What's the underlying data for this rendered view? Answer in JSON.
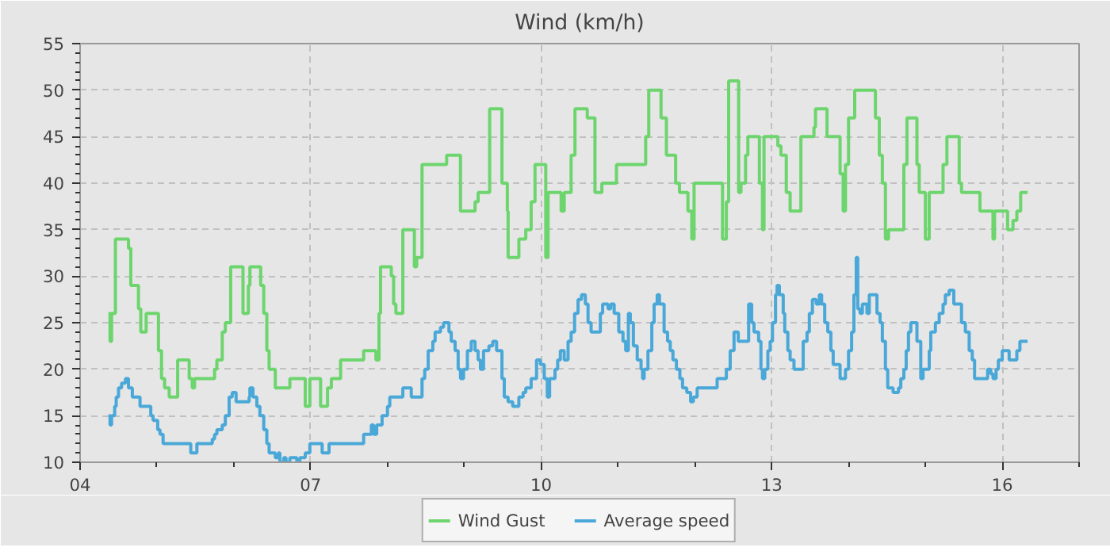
{
  "chart_data": {
    "type": "step",
    "title": "Wind (km/h)",
    "xlim": [
      4,
      17
    ],
    "xticks": [
      {
        "value": 4,
        "label": "04"
      },
      {
        "value": 7,
        "label": "07"
      },
      {
        "value": 10,
        "label": "10"
      },
      {
        "value": 13,
        "label": "13"
      },
      {
        "value": 16,
        "label": "16"
      }
    ],
    "ylim": [
      10,
      55
    ],
    "yticks": [
      10,
      15,
      20,
      25,
      30,
      35,
      40,
      45,
      50,
      55
    ],
    "grid": true,
    "legend": "bottom",
    "series": [
      {
        "name": "Wind Gust",
        "color": "#6dd56d",
        "x": [
          4.37,
          4.39,
          4.41,
          4.46,
          4.63,
          4.66,
          4.76,
          4.79,
          4.86,
          5.02,
          5.06,
          5.1,
          5.16,
          5.27,
          5.42,
          5.46,
          5.49,
          5.75,
          5.78,
          5.85,
          5.89,
          5.96,
          6.12,
          6.19,
          6.21,
          6.35,
          6.39,
          6.43,
          6.46,
          6.54,
          6.73,
          6.93,
          6.99,
          7.13,
          7.22,
          7.27,
          7.39,
          7.69,
          7.85,
          7.89,
          7.91,
          8.05,
          8.08,
          8.11,
          8.2,
          8.35,
          8.38,
          8.45,
          8.77,
          8.95,
          9.14,
          9.18,
          9.33,
          9.49,
          9.56,
          9.57,
          9.71,
          9.8,
          9.87,
          9.92,
          10.06,
          10.09,
          10.26,
          10.3,
          10.39,
          10.44,
          10.6,
          10.7,
          10.79,
          10.98,
          11.36,
          11.4,
          11.56,
          11.63,
          11.75,
          11.8,
          11.91,
          11.96,
          11.99,
          12.36,
          12.41,
          12.44,
          12.57,
          12.6,
          12.66,
          12.69,
          12.84,
          12.88,
          12.9,
          13.08,
          13.12,
          13.19,
          13.24,
          13.38,
          13.55,
          13.57,
          13.72,
          13.89,
          13.93,
          13.96,
          14.0,
          14.08,
          14.35,
          14.4,
          14.44,
          14.48,
          14.52,
          14.72,
          14.76,
          14.89,
          14.92,
          15.0,
          15.05,
          15.23,
          15.28,
          15.44,
          15.47,
          15.71,
          15.88,
          15.9,
          16.07,
          16.14,
          16.19,
          16.24,
          16.33
        ],
        "values": [
          26,
          23,
          26,
          34,
          33,
          29,
          26.5,
          24,
          26,
          22,
          19,
          18,
          17,
          21,
          19,
          18,
          19,
          20,
          21,
          24,
          25,
          31,
          26,
          29,
          31,
          29,
          26,
          22,
          20,
          18,
          19,
          16,
          19,
          16,
          18,
          19,
          21,
          22,
          21,
          26,
          31,
          30,
          27,
          26,
          35,
          31,
          32,
          42,
          43,
          37,
          38,
          39,
          48,
          40,
          37,
          32,
          34,
          35,
          38,
          42,
          32,
          39,
          37,
          39,
          43,
          48,
          47,
          39,
          40,
          42,
          45,
          50,
          47,
          43,
          40,
          39,
          37,
          34,
          40,
          34,
          38,
          51,
          39,
          40,
          43,
          45,
          40,
          35,
          45,
          44,
          43,
          39,
          37,
          45,
          46,
          48,
          45,
          41,
          37,
          42,
          47,
          50,
          47,
          43,
          40,
          34,
          35,
          42,
          47,
          42,
          39,
          34,
          39,
          42,
          45,
          40,
          39,
          37,
          34,
          37,
          35,
          36,
          37,
          39,
          39
        ]
      },
      {
        "name": "Average speed",
        "color": "#4aa8d8",
        "x": [
          4.37,
          4.39,
          4.41,
          4.45,
          4.47,
          4.5,
          4.54,
          4.59,
          4.63,
          4.68,
          4.78,
          4.92,
          4.95,
          5.01,
          5.04,
          5.08,
          5.44,
          5.52,
          5.72,
          5.75,
          5.78,
          5.85,
          5.89,
          5.94,
          5.98,
          6.03,
          6.2,
          6.21,
          6.25,
          6.3,
          6.34,
          6.39,
          6.43,
          6.46,
          6.54,
          6.58,
          6.6,
          6.65,
          6.68,
          6.73,
          6.82,
          6.86,
          6.93,
          6.99,
          7.15,
          7.24,
          7.69,
          7.79,
          7.82,
          7.86,
          7.93,
          8.0,
          8.03,
          8.2,
          8.31,
          8.45,
          8.485,
          8.53,
          8.59,
          8.62,
          8.69,
          8.73,
          8.8,
          8.83,
          8.88,
          8.92,
          8.95,
          8.99,
          9.04,
          9.09,
          9.14,
          9.18,
          9.21,
          9.25,
          9.32,
          9.37,
          9.42,
          9.49,
          9.52,
          9.57,
          9.63,
          9.71,
          9.765,
          9.8,
          9.87,
          9.94,
          9.99,
          10.04,
          10.08,
          10.11,
          10.18,
          10.215,
          10.25,
          10.3,
          10.35,
          10.39,
          10.435,
          10.48,
          10.525,
          10.575,
          10.61,
          10.65,
          10.77,
          10.8,
          10.87,
          10.905,
          10.95,
          11.01,
          11.065,
          11.1,
          11.135,
          11.16,
          11.2,
          11.25,
          11.3,
          11.32,
          11.34,
          11.39,
          11.44,
          11.47,
          11.51,
          11.54,
          11.6,
          11.645,
          11.68,
          11.715,
          11.76,
          11.805,
          11.84,
          11.895,
          11.945,
          11.98,
          12.03,
          12.29,
          12.41,
          12.46,
          12.51,
          12.565,
          12.7,
          12.74,
          12.77,
          12.83,
          12.86,
          12.88,
          12.91,
          12.95,
          12.98,
          13.01,
          13.05,
          13.07,
          13.1,
          13.15,
          13.17,
          13.21,
          13.24,
          13.29,
          13.41,
          13.46,
          13.49,
          13.53,
          13.58,
          13.62,
          13.65,
          13.69,
          13.73,
          13.77,
          13.8,
          13.89,
          13.96,
          14.0,
          14.04,
          14.07,
          14.1,
          14.12,
          14.15,
          14.18,
          14.24,
          14.27,
          14.37,
          14.41,
          14.44,
          14.48,
          14.51,
          14.58,
          14.65,
          14.68,
          14.72,
          14.75,
          14.78,
          14.81,
          14.89,
          14.94,
          14.97,
          15.05,
          15.07,
          15.13,
          15.18,
          15.23,
          15.26,
          15.31,
          15.37,
          15.47,
          15.52,
          15.57,
          15.61,
          15.64,
          15.81,
          15.85,
          15.88,
          15.92,
          15.95,
          16.0,
          16.09,
          16.19,
          16.23,
          16.33
        ],
        "values": [
          15,
          14,
          15,
          16,
          17,
          18,
          18.5,
          19,
          18,
          17,
          16,
          15,
          14.5,
          13.5,
          13,
          12,
          11,
          12,
          12.5,
          13,
          13.5,
          14,
          15,
          17,
          17.5,
          16.5,
          17,
          18,
          17,
          16,
          15,
          13.5,
          12,
          11,
          10.5,
          11,
          10,
          10.5,
          10,
          10.5,
          10,
          10.5,
          11,
          12,
          11,
          12,
          13,
          14,
          13,
          14,
          15,
          16,
          17,
          18,
          17,
          19,
          20,
          22,
          23,
          24,
          24.5,
          25,
          24,
          23,
          22,
          20,
          19,
          20,
          22,
          23,
          22,
          21,
          20,
          22,
          22.5,
          23,
          22,
          19,
          17,
          16.5,
          16,
          17,
          17.5,
          18,
          19,
          21,
          20.5,
          19,
          17,
          19,
          20,
          21,
          22,
          21,
          23,
          24,
          26,
          27.5,
          28,
          27,
          25,
          24,
          26,
          27,
          26.5,
          27,
          26,
          24,
          23,
          22,
          26,
          25,
          22.5,
          21,
          20,
          19,
          20,
          22,
          25,
          27,
          28,
          27,
          24,
          23,
          22,
          21,
          20,
          19,
          18,
          17.5,
          16.5,
          17,
          18,
          19,
          20,
          22,
          24,
          23,
          27,
          25,
          24,
          23,
          20,
          19,
          20,
          22,
          23,
          25,
          28,
          29,
          28,
          26,
          24,
          22,
          21,
          20,
          23,
          24,
          26,
          27.5,
          27,
          28,
          27,
          25,
          24,
          22,
          20.5,
          19,
          20,
          22,
          24,
          28,
          32,
          26.5,
          26,
          27,
          26,
          28,
          26,
          25,
          23,
          20,
          18,
          17.5,
          18,
          19,
          20,
          22,
          24,
          25,
          23,
          19,
          20,
          22,
          24,
          25,
          26,
          27,
          28,
          28.5,
          27,
          25,
          24,
          22,
          21,
          19,
          20,
          19.5,
          19,
          20,
          21,
          22,
          21,
          22,
          23,
          23
        ]
      }
    ]
  }
}
